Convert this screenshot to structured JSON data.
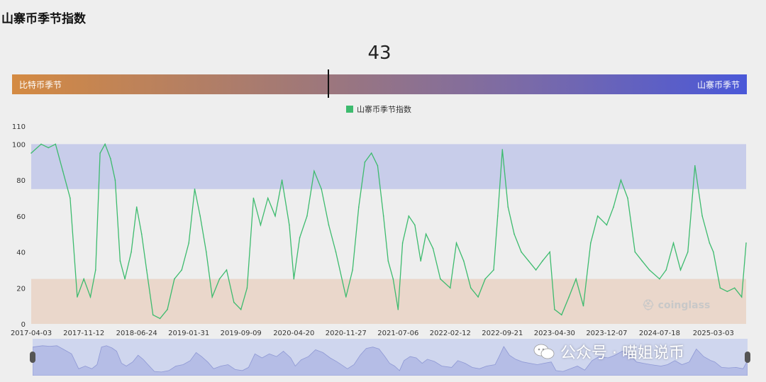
{
  "page": {
    "title": "山寨币季节指数"
  },
  "gauge": {
    "current_value": "43",
    "value": 43,
    "left_label": "比特币季节",
    "right_label": "山寨币季节"
  },
  "watermark": {
    "brand": "coinglass",
    "footer": "公众号 · 喵姐说币"
  },
  "chart_data": {
    "type": "line",
    "title": "",
    "legend": "top-center",
    "series": [
      {
        "name": "山寨币季节指数",
        "color": "#3dbb6e",
        "x": [
          "2017-04-03",
          "2017-05-15",
          "2017-06-15",
          "2017-07-15",
          "2017-08-15",
          "2017-09-15",
          "2017-10-15",
          "2017-11-12",
          "2017-12-10",
          "2018-01-01",
          "2018-01-20",
          "2018-02-10",
          "2018-03-05",
          "2018-03-25",
          "2018-04-15",
          "2018-05-05",
          "2018-06-01",
          "2018-06-24",
          "2018-07-15",
          "2018-08-05",
          "2018-09-01",
          "2018-10-01",
          "2018-11-01",
          "2018-12-01",
          "2019-01-01",
          "2019-01-31",
          "2019-02-25",
          "2019-03-20",
          "2019-04-15",
          "2019-05-10",
          "2019-06-10",
          "2019-07-10",
          "2019-08-10",
          "2019-09-09",
          "2019-10-05",
          "2019-11-01",
          "2019-12-01",
          "2020-01-01",
          "2020-02-01",
          "2020-03-01",
          "2020-04-01",
          "2020-04-20",
          "2020-05-15",
          "2020-06-15",
          "2020-07-15",
          "2020-08-15",
          "2020-09-15",
          "2020-10-15",
          "2020-11-27",
          "2020-12-25",
          "2021-01-20",
          "2021-02-15",
          "2021-03-15",
          "2021-04-10",
          "2021-05-05",
          "2021-05-25",
          "2021-06-15",
          "2021-07-06",
          "2021-07-25",
          "2021-08-20",
          "2021-09-15",
          "2021-10-10",
          "2021-11-01",
          "2021-12-01",
          "2022-01-01",
          "2022-02-12",
          "2022-03-10",
          "2022-04-10",
          "2022-05-10",
          "2022-06-10",
          "2022-07-10",
          "2022-08-15",
          "2022-09-01",
          "2022-09-21",
          "2022-10-15",
          "2022-11-10",
          "2022-12-10",
          "2023-01-10",
          "2023-02-10",
          "2023-03-10",
          "2023-04-10",
          "2023-04-30",
          "2023-05-30",
          "2023-06-30",
          "2023-07-30",
          "2023-08-30",
          "2023-09-30",
          "2023-10-30",
          "2023-12-07",
          "2024-01-05",
          "2024-02-05",
          "2024-03-05",
          "2024-04-05",
          "2024-05-05",
          "2024-06-05",
          "2024-07-18",
          "2024-08-15",
          "2024-09-15",
          "2024-10-15",
          "2024-11-15",
          "2024-12-15",
          "2025-01-15",
          "2025-02-15",
          "2025-03-03",
          "2025-04-01",
          "2025-05-01",
          "2025-06-01",
          "2025-07-01",
          "2025-07-20"
        ],
        "values": [
          95,
          100,
          98,
          100,
          85,
          70,
          15,
          25,
          15,
          30,
          95,
          100,
          92,
          80,
          35,
          25,
          40,
          65,
          50,
          30,
          5,
          3,
          8,
          25,
          30,
          45,
          75,
          60,
          40,
          15,
          25,
          30,
          12,
          8,
          20,
          70,
          55,
          70,
          60,
          80,
          55,
          25,
          48,
          60,
          85,
          75,
          55,
          40,
          15,
          30,
          65,
          90,
          95,
          88,
          60,
          35,
          25,
          8,
          45,
          60,
          55,
          35,
          50,
          42,
          25,
          20,
          45,
          35,
          20,
          15,
          25,
          30,
          60,
          97,
          65,
          50,
          40,
          35,
          30,
          35,
          40,
          8,
          5,
          15,
          25,
          10,
          45,
          60,
          55,
          65,
          80,
          70,
          40,
          35,
          30,
          25,
          30,
          45,
          30,
          40,
          88,
          60,
          45,
          40,
          20,
          18,
          20,
          15,
          45
        ]
      }
    ],
    "x_ticks": [
      "2017-04-03",
      "2017-11-12",
      "2018-06-24",
      "2019-01-31",
      "2019-09-09",
      "2020-04-20",
      "2020-11-27",
      "2021-07-06",
      "2022-02-12",
      "2022-09-21",
      "2023-04-30",
      "2023-12-07",
      "2024-07-18",
      "2025-03-03"
    ],
    "y_ticks": [
      0,
      20,
      40,
      60,
      80,
      100,
      110
    ],
    "ylim": [
      0,
      110
    ],
    "bands": [
      {
        "from": 75,
        "to": 100,
        "color": "#c8cdea"
      },
      {
        "from": 0,
        "to": 25,
        "color": "#ead7cb"
      }
    ],
    "grid": false
  }
}
